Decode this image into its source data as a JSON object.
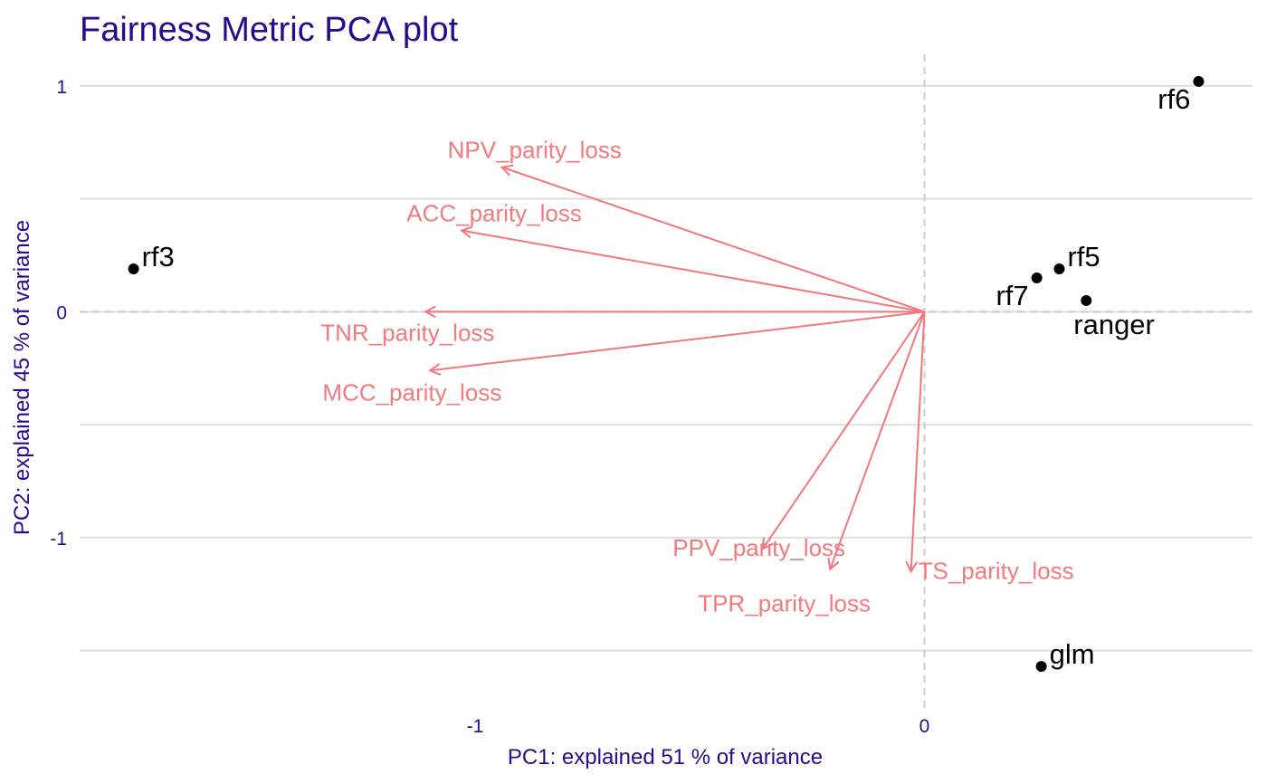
{
  "chart_data": {
    "type": "scatter",
    "title": "Fairness Metric PCA plot",
    "xlabel": "PC1: explained 51 % of variance",
    "ylabel": "PC2: explained 45 % of variance",
    "xlim": [
      -1.88,
      0.73
    ],
    "ylim": [
      -1.77,
      1.14
    ],
    "x_ticks": [
      -1,
      0
    ],
    "x_tick_labels": [
      "-1",
      "0"
    ],
    "y_ticks": [
      1,
      0,
      -1
    ],
    "y_tick_labels": [
      "1",
      "0",
      "-1"
    ],
    "y_grid_lines": [
      1,
      0.5,
      0,
      -0.5,
      -1,
      -1.5
    ],
    "zero_lines": "dashed",
    "grid": true,
    "points": [
      {
        "label": "rf6",
        "x": 0.61,
        "y": 1.02,
        "label_pos": "bottom-left"
      },
      {
        "label": "rf5",
        "x": 0.3,
        "y": 0.19,
        "label_pos": "top-right"
      },
      {
        "label": "rf7",
        "x": 0.25,
        "y": 0.15,
        "label_pos": "bottom-left"
      },
      {
        "label": "ranger",
        "x": 0.36,
        "y": 0.05,
        "label_pos": "bottom-right"
      },
      {
        "label": "rf3",
        "x": -1.76,
        "y": 0.19,
        "label_pos": "top-right"
      },
      {
        "label": "glm",
        "x": 0.26,
        "y": -1.57,
        "label_pos": "top-right"
      }
    ],
    "loadings": [
      {
        "label": "NPV_parity_loss",
        "x": -0.94,
        "y": 0.64
      },
      {
        "label": "ACC_parity_loss",
        "x": -1.03,
        "y": 0.36
      },
      {
        "label": "TNR_parity_loss",
        "x": -1.11,
        "y": 0.0
      },
      {
        "label": "MCC_parity_loss",
        "x": -1.1,
        "y": -0.26
      },
      {
        "label": "PPV_parity_loss",
        "x": -0.36,
        "y": -1.05
      },
      {
        "label": "TPR_parity_loss",
        "x": -0.21,
        "y": -1.14
      },
      {
        "label": "TS_parity_loss",
        "x": -0.03,
        "y": -1.15
      }
    ],
    "colors": {
      "title": "#2a0a8c",
      "axis_text": "#2a0a8c",
      "points": "#000000",
      "arrows": "#f4777b",
      "arrow_labels": "#f47a7e",
      "grid": "#dedede",
      "zero_line": "#cccccc"
    }
  }
}
